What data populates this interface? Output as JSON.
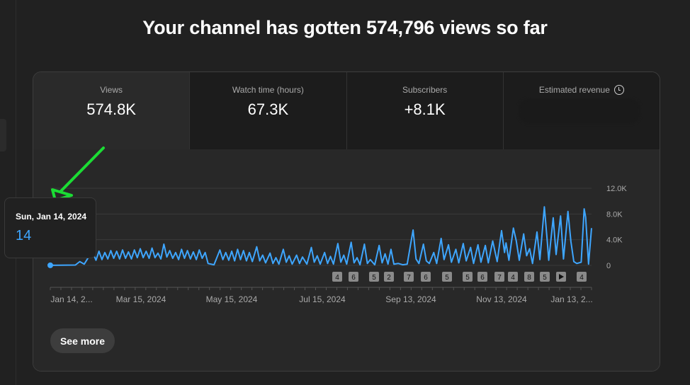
{
  "headline": "Your channel has gotten 574,796 views so far",
  "metrics": [
    {
      "label": "Views",
      "value": "574.8K"
    },
    {
      "label": "Watch time (hours)",
      "value": "67.3K"
    },
    {
      "label": "Subscribers",
      "value": "+8.1K"
    },
    {
      "label": "Estimated revenue",
      "value": ""
    }
  ],
  "tooltip": {
    "date": "Sun, Jan 14, 2024",
    "value": "14"
  },
  "see_more_label": "See more",
  "colors": {
    "line": "#3ea6ff",
    "annotation_arrow": "#1bdc34",
    "background": "#212121"
  },
  "chart_data": {
    "type": "line",
    "title": "",
    "xlabel": "",
    "ylabel": "",
    "ylim": [
      0,
      12000
    ],
    "yticks": [
      "0",
      "4.0K",
      "8.0K",
      "12.0K"
    ],
    "x_tick_labels": [
      "Jan 14, 2...",
      "Mar 15, 2024",
      "May 15, 2024",
      "Jul 15, 2024",
      "Sep 13, 2024",
      "Nov 13, 2024",
      "Jan 13, 2..."
    ],
    "grid": true,
    "x_start": "2024-01-14",
    "x_end": "2025-01-15",
    "series": [
      {
        "name": "",
        "points": [
          [
            "2024-01-14",
            14
          ],
          [
            "2024-01-31",
            60
          ],
          [
            "2024-02-03",
            600
          ],
          [
            "2024-02-06",
            200
          ],
          [
            "2024-02-09",
            1300
          ],
          [
            "2024-02-12",
            1900
          ],
          [
            "2024-02-14",
            800
          ],
          [
            "2024-02-16",
            2200
          ],
          [
            "2024-02-18",
            900
          ],
          [
            "2024-02-20",
            2000
          ],
          [
            "2024-02-22",
            1000
          ],
          [
            "2024-02-24",
            2300
          ],
          [
            "2024-02-26",
            1100
          ],
          [
            "2024-02-28",
            2200
          ],
          [
            "2024-03-01",
            1000
          ],
          [
            "2024-03-03",
            2400
          ],
          [
            "2024-03-05",
            1100
          ],
          [
            "2024-03-07",
            2100
          ],
          [
            "2024-03-09",
            1000
          ],
          [
            "2024-03-11",
            2400
          ],
          [
            "2024-03-13",
            1200
          ],
          [
            "2024-03-15",
            2600
          ],
          [
            "2024-03-17",
            1200
          ],
          [
            "2024-03-19",
            2200
          ],
          [
            "2024-03-21",
            1100
          ],
          [
            "2024-03-23",
            2700
          ],
          [
            "2024-03-25",
            1200
          ],
          [
            "2024-03-27",
            1900
          ],
          [
            "2024-03-29",
            1000
          ],
          [
            "2024-03-31",
            3300
          ],
          [
            "2024-04-02",
            1300
          ],
          [
            "2024-04-04",
            2300
          ],
          [
            "2024-04-06",
            1100
          ],
          [
            "2024-04-08",
            2000
          ],
          [
            "2024-04-10",
            900
          ],
          [
            "2024-04-12",
            2500
          ],
          [
            "2024-04-14",
            1100
          ],
          [
            "2024-04-16",
            2300
          ],
          [
            "2024-04-18",
            1000
          ],
          [
            "2024-04-20",
            2100
          ],
          [
            "2024-04-22",
            900
          ],
          [
            "2024-04-24",
            2400
          ],
          [
            "2024-04-26",
            1100
          ],
          [
            "2024-04-28",
            2000
          ],
          [
            "2024-04-30",
            300
          ],
          [
            "2024-05-04",
            100
          ],
          [
            "2024-05-08",
            2400
          ],
          [
            "2024-05-10",
            900
          ],
          [
            "2024-05-12",
            2000
          ],
          [
            "2024-05-14",
            800
          ],
          [
            "2024-05-16",
            2200
          ],
          [
            "2024-05-18",
            700
          ],
          [
            "2024-05-20",
            2500
          ],
          [
            "2024-05-22",
            900
          ],
          [
            "2024-05-24",
            2300
          ],
          [
            "2024-05-26",
            700
          ],
          [
            "2024-05-28",
            2000
          ],
          [
            "2024-05-30",
            600
          ],
          [
            "2024-06-02",
            2900
          ],
          [
            "2024-06-04",
            700
          ],
          [
            "2024-06-06",
            1600
          ],
          [
            "2024-06-08",
            400
          ],
          [
            "2024-06-11",
            1900
          ],
          [
            "2024-06-13",
            300
          ],
          [
            "2024-06-15",
            1200
          ],
          [
            "2024-06-17",
            200
          ],
          [
            "2024-06-20",
            2500
          ],
          [
            "2024-06-22",
            500
          ],
          [
            "2024-06-24",
            1500
          ],
          [
            "2024-06-26",
            200
          ],
          [
            "2024-06-29",
            1600
          ],
          [
            "2024-07-01",
            300
          ],
          [
            "2024-07-03",
            1300
          ],
          [
            "2024-07-06",
            200
          ],
          [
            "2024-07-09",
            2800
          ],
          [
            "2024-07-11",
            500
          ],
          [
            "2024-07-13",
            1500
          ],
          [
            "2024-07-15",
            200
          ],
          [
            "2024-07-18",
            2000
          ],
          [
            "2024-07-20",
            300
          ],
          [
            "2024-07-22",
            1400
          ],
          [
            "2024-07-24",
            200
          ],
          [
            "2024-07-27",
            3400
          ],
          [
            "2024-07-29",
            500
          ],
          [
            "2024-07-31",
            1600
          ],
          [
            "2024-08-02",
            200
          ],
          [
            "2024-08-05",
            3600
          ],
          [
            "2024-08-07",
            400
          ],
          [
            "2024-08-09",
            1200
          ],
          [
            "2024-08-11",
            100
          ],
          [
            "2024-08-14",
            3300
          ],
          [
            "2024-08-16",
            300
          ],
          [
            "2024-08-18",
            900
          ],
          [
            "2024-08-21",
            100
          ],
          [
            "2024-08-24",
            3100
          ],
          [
            "2024-08-26",
            400
          ],
          [
            "2024-08-28",
            1800
          ],
          [
            "2024-08-30",
            200
          ],
          [
            "2024-09-01",
            2500
          ],
          [
            "2024-09-03",
            200
          ],
          [
            "2024-09-06",
            300
          ],
          [
            "2024-09-09",
            100
          ],
          [
            "2024-09-12",
            200
          ],
          [
            "2024-09-16",
            5500
          ],
          [
            "2024-09-18",
            1000
          ],
          [
            "2024-09-20",
            300
          ],
          [
            "2024-09-23",
            3300
          ],
          [
            "2024-09-25",
            700
          ],
          [
            "2024-09-27",
            300
          ],
          [
            "2024-09-30",
            2000
          ],
          [
            "2024-10-02",
            300
          ],
          [
            "2024-10-05",
            4200
          ],
          [
            "2024-10-07",
            900
          ],
          [
            "2024-10-10",
            3200
          ],
          [
            "2024-10-12",
            500
          ],
          [
            "2024-10-15",
            2500
          ],
          [
            "2024-10-17",
            400
          ],
          [
            "2024-10-20",
            3400
          ],
          [
            "2024-10-22",
            700
          ],
          [
            "2024-10-25",
            2800
          ],
          [
            "2024-10-27",
            300
          ],
          [
            "2024-10-30",
            3200
          ],
          [
            "2024-11-01",
            500
          ],
          [
            "2024-11-04",
            3100
          ],
          [
            "2024-11-06",
            400
          ],
          [
            "2024-11-09",
            3800
          ],
          [
            "2024-11-12",
            600
          ],
          [
            "2024-11-15",
            5400
          ],
          [
            "2024-11-17",
            2000
          ],
          [
            "2024-11-18",
            3500
          ],
          [
            "2024-11-20",
            800
          ],
          [
            "2024-11-23",
            5800
          ],
          [
            "2024-11-25",
            3800
          ],
          [
            "2024-11-27",
            800
          ],
          [
            "2024-11-30",
            4900
          ],
          [
            "2024-12-02",
            1500
          ],
          [
            "2024-12-04",
            2600
          ],
          [
            "2024-12-06",
            300
          ],
          [
            "2024-12-09",
            5200
          ],
          [
            "2024-12-11",
            900
          ],
          [
            "2024-12-14",
            9100
          ],
          [
            "2024-12-16",
            3800
          ],
          [
            "2024-12-17",
            800
          ],
          [
            "2024-12-20",
            7400
          ],
          [
            "2024-12-22",
            1700
          ],
          [
            "2024-12-25",
            7700
          ],
          [
            "2024-12-27",
            1000
          ],
          [
            "2024-12-30",
            8400
          ],
          [
            "2025-01-01",
            3700
          ],
          [
            "2025-01-03",
            600
          ],
          [
            "2025-01-05",
            300
          ],
          [
            "2025-01-08",
            500
          ],
          [
            "2025-01-10",
            8800
          ],
          [
            "2025-01-11",
            7500
          ],
          [
            "2025-01-13",
            200
          ],
          [
            "2025-01-15",
            5800
          ]
        ]
      }
    ],
    "marker_badges": [
      "4",
      "6",
      "5",
      "2",
      "7",
      "6",
      "5",
      "5",
      "6",
      "7",
      "4",
      "8",
      "5",
      "play",
      "4"
    ]
  }
}
